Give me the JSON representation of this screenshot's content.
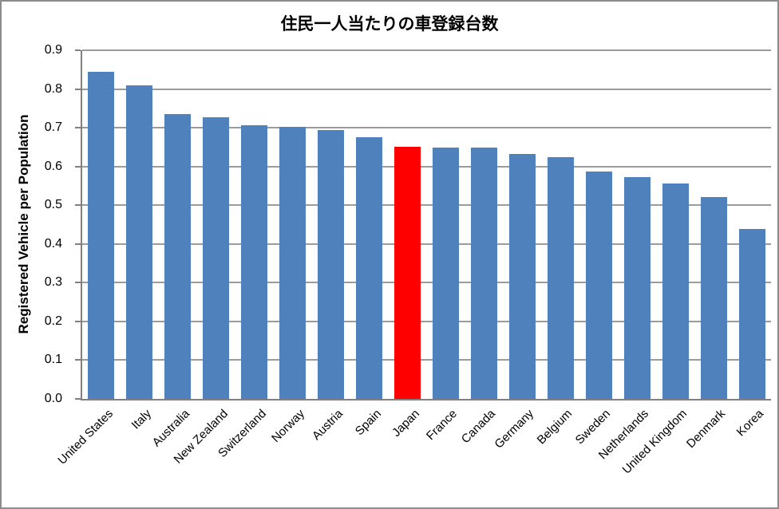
{
  "chart_data": {
    "type": "bar",
    "title": "住民一人当たりの車登録台数",
    "xlabel": "",
    "ylabel": "Registered Vehicle per Population",
    "categories": [
      "United States",
      "Italy",
      "Australia",
      "New Zealand",
      "Switzerland",
      "Norway",
      "Austria",
      "Spain",
      "Japan",
      "France",
      "Canada",
      "Germany",
      "Belgium",
      "Sweden",
      "Netherlands",
      "United Kingdom",
      "Denmark",
      "Korea"
    ],
    "values": [
      0.845,
      0.81,
      0.735,
      0.727,
      0.706,
      0.702,
      0.695,
      0.675,
      0.651,
      0.648,
      0.648,
      0.632,
      0.624,
      0.588,
      0.572,
      0.556,
      0.522,
      0.439
    ],
    "highlight_category": "Japan",
    "bar_color": "#4F81BD",
    "highlight_color": "#FF0000",
    "ylim": [
      0.0,
      0.9
    ],
    "ytick_labels": [
      "0.0",
      "0.1",
      "0.2",
      "0.3",
      "0.4",
      "0.5",
      "0.6",
      "0.7",
      "0.8",
      "0.9"
    ],
    "grid": true,
    "legend": false,
    "x_label_rotation_deg": 45
  }
}
